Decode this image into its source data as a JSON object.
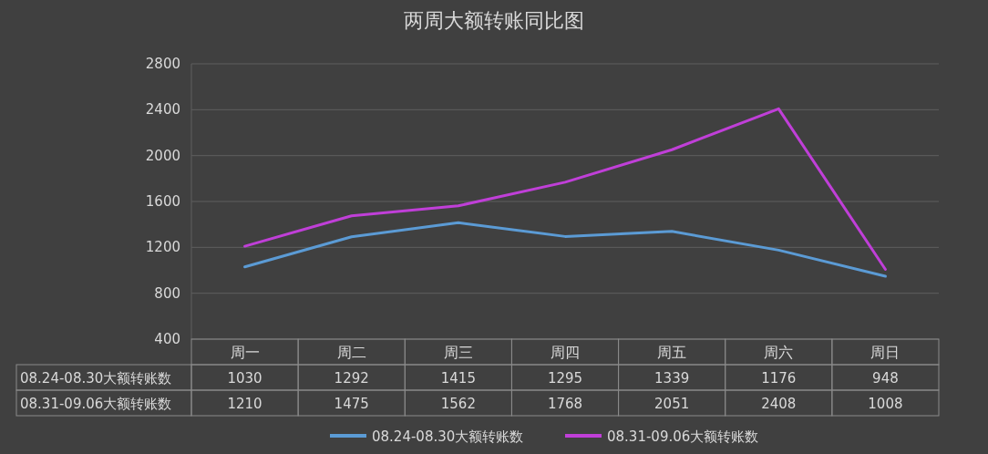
{
  "chart_data": {
    "type": "line",
    "title": "两周大额转账同比图",
    "categories": [
      "周一",
      "周二",
      "周三",
      "周四",
      "周五",
      "周六",
      "周日"
    ],
    "series": [
      {
        "name": "08.24-08.30大额转账数",
        "color": "#5b9bd5",
        "values": [
          1030,
          1292,
          1415,
          1295,
          1339,
          1176,
          948
        ]
      },
      {
        "name": "08.31-09.06大额转账数",
        "color": "#c03fd8",
        "values": [
          1210,
          1475,
          1562,
          1768,
          2051,
          2408,
          1008
        ]
      }
    ],
    "ylim": [
      400,
      2800
    ],
    "yticks": [
      400,
      800,
      1200,
      1600,
      2000,
      2400,
      2800
    ],
    "grid": "y",
    "legend": "bottom",
    "data_labels": true,
    "marker": "none",
    "line_style": "solid"
  }
}
